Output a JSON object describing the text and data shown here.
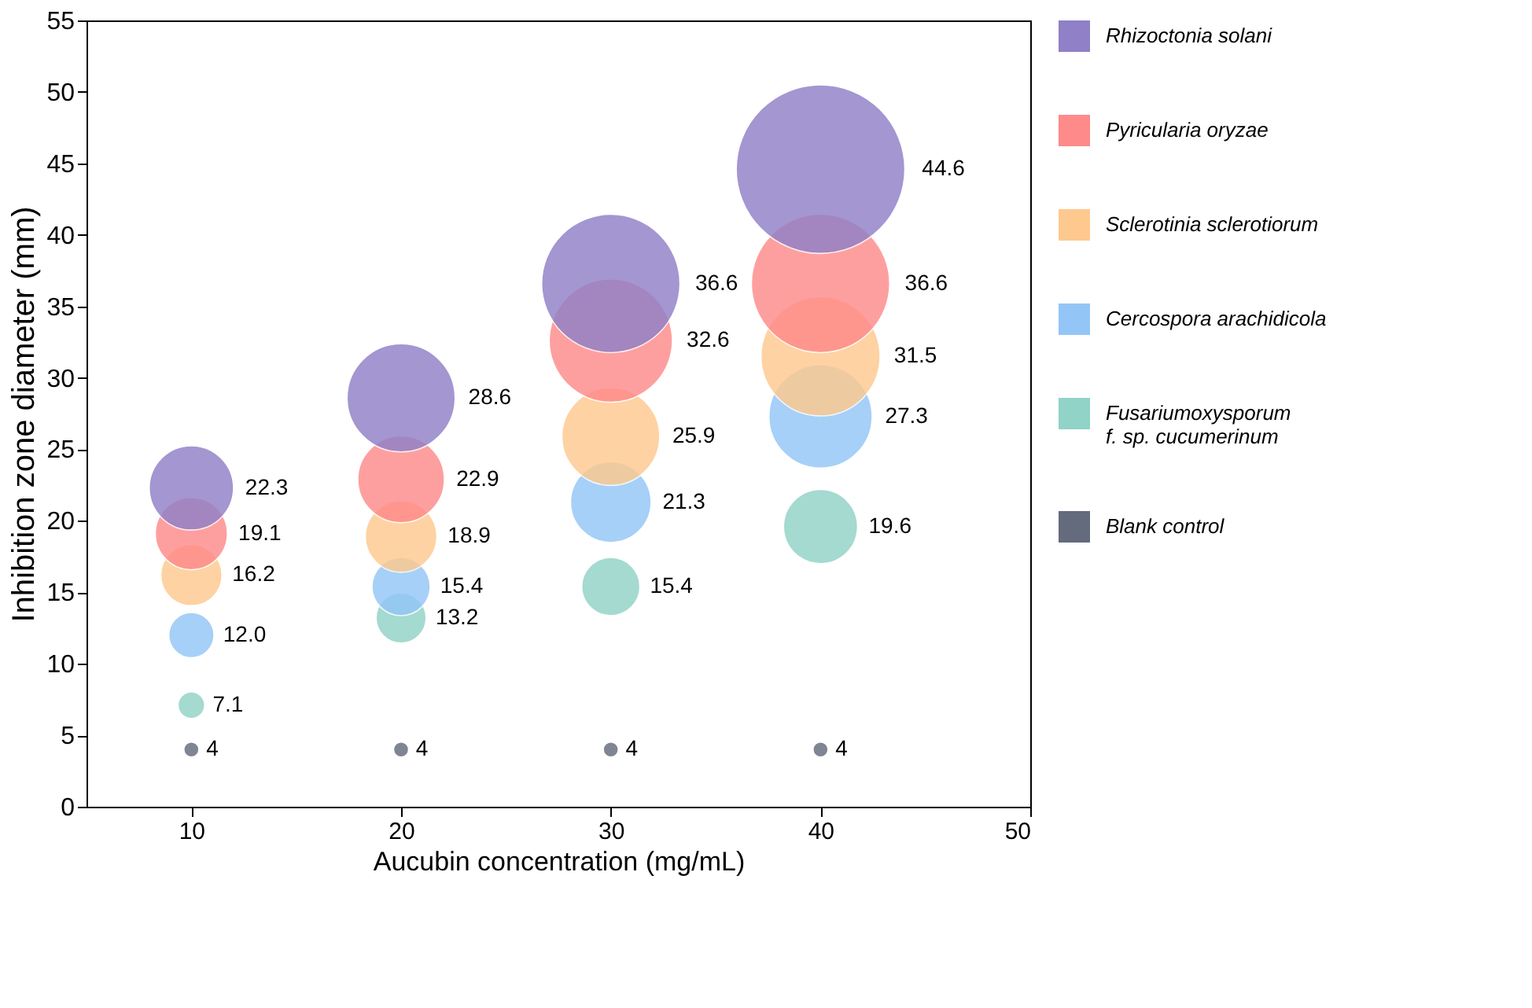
{
  "chart_data": {
    "type": "bubble",
    "xlabel": "Aucubin concentration (mg/mL)",
    "ylabel": "Inhibition zone diameter (mm)",
    "x": [
      10,
      20,
      30,
      40
    ],
    "xlim": [
      5,
      50
    ],
    "xticks": [
      10,
      20,
      30,
      40,
      50
    ],
    "ylim": [
      0,
      55
    ],
    "yticks": [
      0,
      5,
      10,
      15,
      20,
      25,
      30,
      35,
      40,
      45,
      50,
      55
    ],
    "grid": false,
    "legend": "right",
    "series": [
      {
        "name": "Blank control",
        "color": "#636b7c",
        "values": [
          4,
          4,
          4,
          4
        ],
        "sizes": [
          0.008,
          0.008,
          0.008,
          0.008
        ],
        "value_labels": [
          "4",
          "4",
          "4",
          "4"
        ]
      },
      {
        "name": "Fusariumoxysporum f. sp. cucumerinum",
        "color": "#91d3c6",
        "values": [
          7.1,
          13.2,
          15.4,
          19.6
        ],
        "sizes": [
          0.025,
          0.088,
          0.119,
          0.193
        ],
        "value_labels": [
          "7.1",
          "13.2",
          "15.4",
          "19.6"
        ]
      },
      {
        "name": "Cercospora arachidicola",
        "color": "#93c6f6",
        "values": [
          12.0,
          15.4,
          21.3,
          27.3
        ],
        "sizes": [
          0.072,
          0.119,
          0.228,
          0.375
        ],
        "value_labels": [
          "12.0",
          "15.4",
          "21.3",
          "27.3"
        ]
      },
      {
        "name": "Sclerotinia sclerotiorum",
        "color": "#fec98e",
        "values": [
          16.2,
          18.9,
          25.9,
          31.5
        ],
        "sizes": [
          0.132,
          0.18,
          0.337,
          0.499
        ],
        "value_labels": [
          "16.2",
          "18.9",
          "25.9",
          "31.5"
        ]
      },
      {
        "name": "Pyricularia oryzae",
        "color": "#fe8a8a",
        "values": [
          19.1,
          22.9,
          32.6,
          36.6
        ],
        "sizes": [
          0.183,
          0.264,
          0.534,
          0.673
        ],
        "value_labels": [
          "19.1",
          "22.9",
          "32.6",
          "36.6"
        ]
      },
      {
        "name": "Rhizoctonia solani",
        "color": "#9080c8",
        "values": [
          22.3,
          28.6,
          36.6,
          44.6
        ],
        "sizes": [
          0.25,
          0.411,
          0.673,
          1
        ],
        "value_labels": [
          "22.3",
          "28.6",
          "36.6",
          "44.6"
        ]
      }
    ]
  }
}
